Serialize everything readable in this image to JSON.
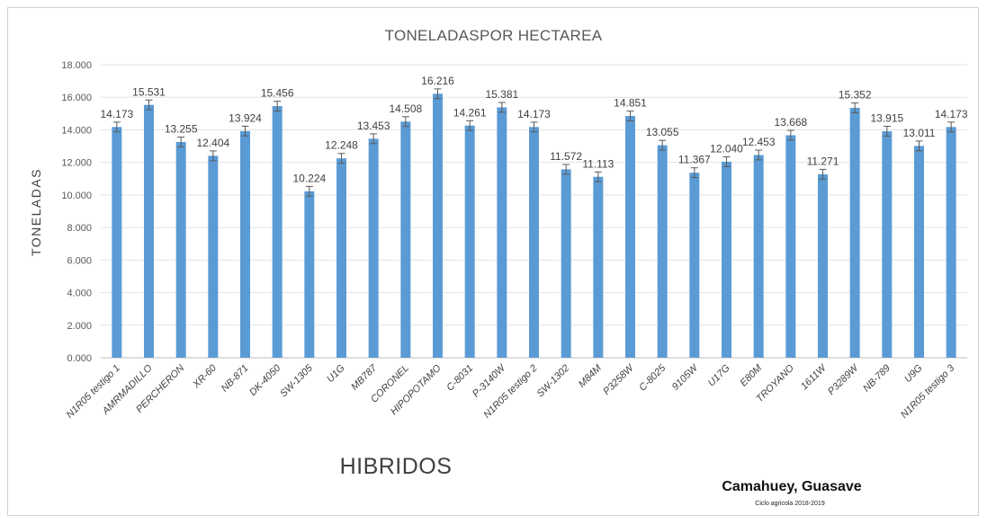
{
  "chart_data": {
    "type": "bar",
    "title": "TONELADASPOR HECTAREA",
    "xlabel": "HIBRIDOS",
    "ylabel": "TONELADAS",
    "ylim": [
      0,
      18
    ],
    "yticks": [
      "0.000",
      "2.000",
      "4.000",
      "6.000",
      "8.000",
      "10.000",
      "12.000",
      "14.000",
      "16.000",
      "18.000"
    ],
    "grid": true,
    "error_bars": true,
    "bar_color": "#5b9bd5",
    "categories": [
      "N1R05 testigo 1",
      "AMRMADILLO",
      "PERCHERON",
      "XR-60",
      "NB-871",
      "DK-4050",
      "SW-1305",
      "U1G",
      "MB787",
      "CORONEL",
      "HIPOPOTAMO",
      "C-8031",
      "P-3140W",
      "N1R05 testigo 2",
      "SW-1302",
      "M84M",
      "P3258W",
      "C-8025",
      "9105W",
      "U17G",
      "E80M",
      "TROYANO",
      "1611W",
      "P3289W",
      "NB-789",
      "U9G",
      "N1R05 testigo 3"
    ],
    "values": [
      14.173,
      15.531,
      13.255,
      12.404,
      13.924,
      15.456,
      10.224,
      12.248,
      13.453,
      14.508,
      16.216,
      14.261,
      15.381,
      14.173,
      11.572,
      11.113,
      14.851,
      13.055,
      11.367,
      12.04,
      12.453,
      13.668,
      11.271,
      15.352,
      13.915,
      13.011,
      14.173
    ],
    "data_labels": [
      "14.173",
      "15.531",
      "13.255",
      "12.404",
      "13.924",
      "15.456",
      "10.224",
      "12.248",
      "13.453",
      "14.508",
      "16.216",
      "14.261",
      "15.381",
      "14.173",
      "11.572",
      "11.113",
      "14.851",
      "13.055",
      "11.367",
      "12.040",
      "12.453",
      "13.668",
      "11.271",
      "15.352",
      "13.915",
      "13.011",
      "14.173"
    ],
    "error": 0.3
  },
  "footer": {
    "location": "Camahuey, Guasave",
    "cycle": "Ciclo agricola 2018-2019"
  }
}
